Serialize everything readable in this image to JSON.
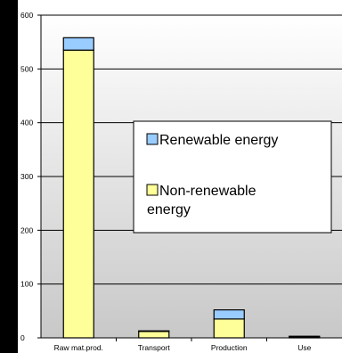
{
  "chart_data": {
    "type": "bar",
    "stacked": true,
    "categories": [
      "Raw mat.prod.",
      "Transport",
      "Production",
      "Use"
    ],
    "series": [
      {
        "name": "Non-renewable energy",
        "values": [
          535,
          12,
          35,
          2
        ],
        "color": "#ffff99"
      },
      {
        "name": "Renewable energy",
        "values": [
          23,
          1,
          17,
          1
        ],
        "color": "#99ccff"
      }
    ],
    "y_ticks": [
      0,
      100,
      200,
      300,
      400,
      500,
      600
    ],
    "ylim": [
      0,
      600
    ],
    "grid": "horizontal",
    "legend_position": "center-right",
    "plot_background": "gradient grey",
    "title": "",
    "xlabel": "",
    "ylabel": ""
  }
}
